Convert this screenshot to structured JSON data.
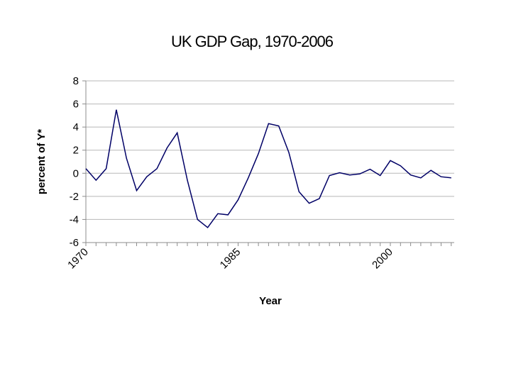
{
  "chart_data": {
    "type": "line",
    "title": "UK GDP  Gap, 1970-2006",
    "xlabel": "Year",
    "ylabel": "percent of Y*",
    "ylim": [
      -6,
      8
    ],
    "yticks": [
      "8",
      "6",
      "4",
      "2",
      "0",
      "-2",
      "-4",
      "-6"
    ],
    "xlim": [
      1970,
      2006
    ],
    "xtick_labels": [
      "1970",
      "1985",
      "2000"
    ],
    "grid": "horizontal",
    "legend": "none",
    "series": [
      {
        "name": "UK GDP gap",
        "color": "#000066",
        "x": [
          1970,
          1971,
          1972,
          1973,
          1974,
          1975,
          1976,
          1977,
          1978,
          1979,
          1980,
          1981,
          1982,
          1983,
          1984,
          1985,
          1986,
          1987,
          1988,
          1989,
          1990,
          1991,
          1992,
          1993,
          1994,
          1995,
          1996,
          1997,
          1998,
          1999,
          2000,
          2001,
          2002,
          2003,
          2004,
          2005,
          2006
        ],
        "values": [
          0.4,
          -0.6,
          0.4,
          5.5,
          1.3,
          -1.5,
          -0.3,
          0.4,
          2.2,
          3.5,
          -0.6,
          -4.0,
          -4.7,
          -3.5,
          -3.6,
          -2.3,
          -0.4,
          1.7,
          4.3,
          4.1,
          1.8,
          -1.6,
          -2.6,
          -2.2,
          -0.2,
          0.05,
          -0.15,
          -0.05,
          0.35,
          -0.2,
          1.1,
          0.65,
          -0.15,
          -0.4,
          0.25,
          -0.3,
          -0.4
        ]
      }
    ]
  }
}
